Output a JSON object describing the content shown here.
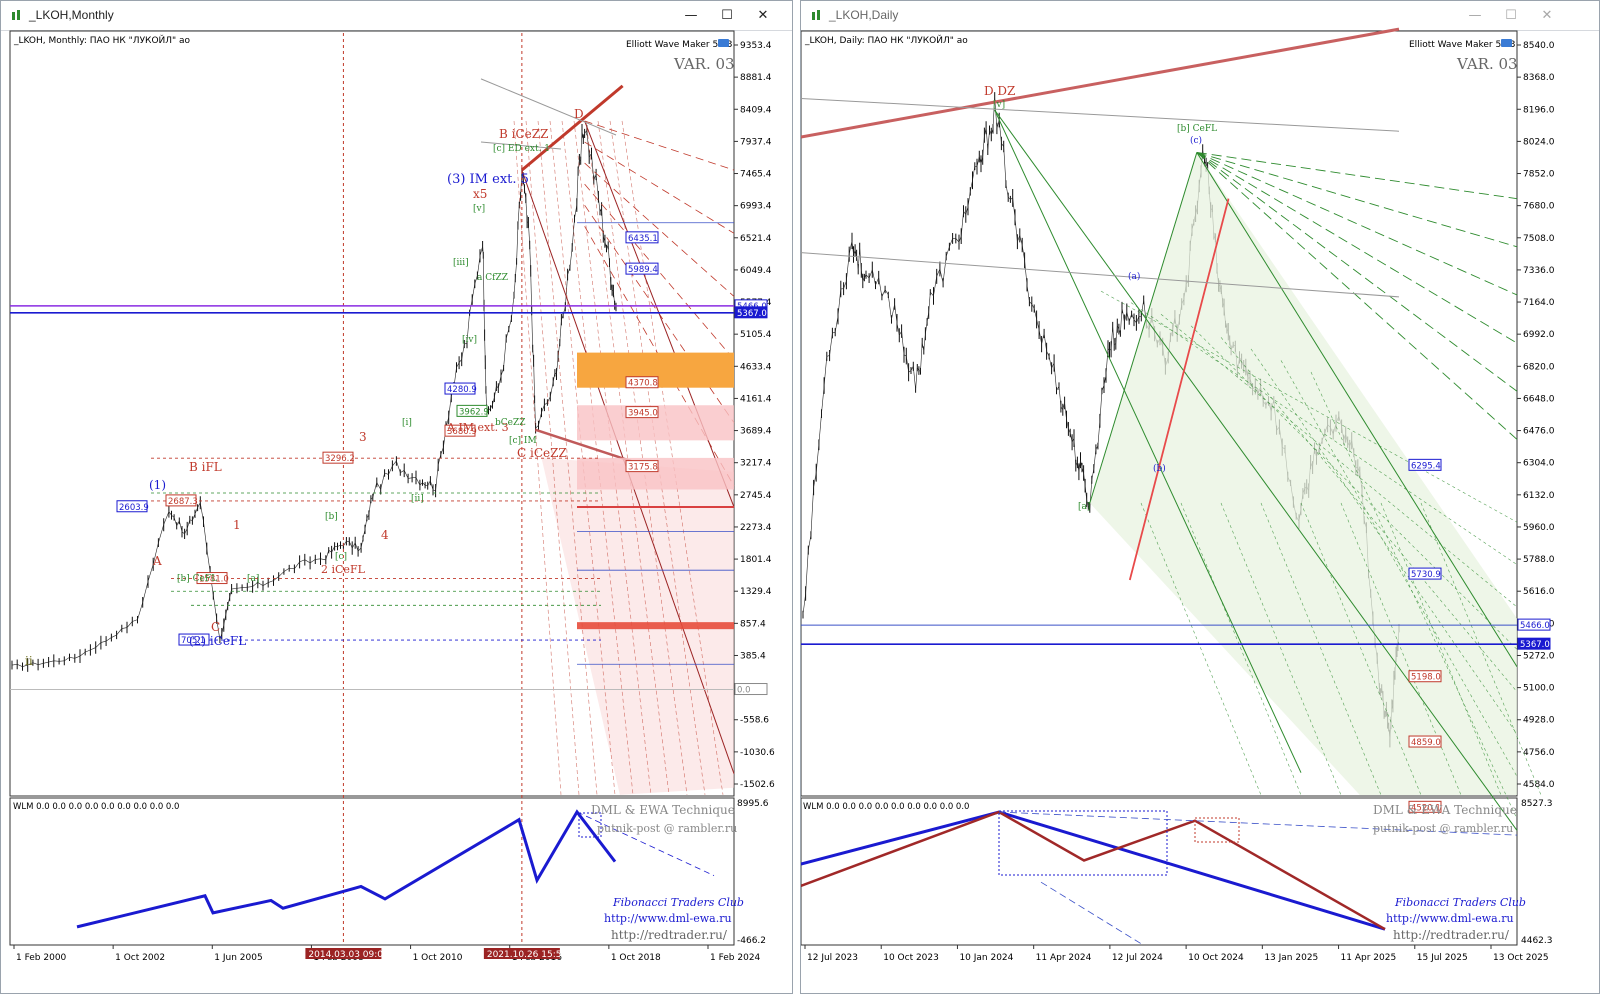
{
  "colors": {
    "blue": "#1a1ad0",
    "red": "#c0392b",
    "darkred": "#9b2323",
    "green": "#2e8b2e",
    "orange": "#f7a640",
    "pink": "#f9d0d0",
    "purple": "#8a2be2",
    "olive": "#6b6b1a"
  },
  "left": {
    "window_title": "_LKOH,Monthly",
    "chart_label": "_LKOH, Monthly:  ПАО НК \"ЛУКОЙЛ\" ао",
    "plugin": "Elliott Wave Maker 5.63",
    "variant": "VAR. 03",
    "price_ticks": [
      "9353.4",
      "8881.4",
      "8409.4",
      "7937.4",
      "7465.4",
      "6993.4",
      "6521.4",
      "6049.4",
      "5577.4",
      "5105.4",
      "4633.4",
      "4161.4",
      "3689.4",
      "3217.4",
      "2745.4",
      "2273.4",
      "1801.4",
      "1329.4",
      "857.4",
      "385.4",
      "-86.6",
      "-558.6",
      "-1030.6",
      "-1502.6"
    ],
    "price_markers": [
      {
        "text": "6435.1",
        "color": "blue"
      },
      {
        "text": "5989.4",
        "color": "blue"
      },
      {
        "text": "5466.0",
        "color": "blue"
      },
      {
        "text": "5367.0",
        "color": "blue"
      },
      {
        "text": "4370.8",
        "color": "red"
      },
      {
        "text": "3945.0",
        "color": "red"
      },
      {
        "text": "3175.8",
        "color": "red"
      },
      {
        "text": "0.0",
        "color": "gray"
      }
    ],
    "level_boxes": [
      {
        "text": "2603.9",
        "color": "blue"
      },
      {
        "text": "2687.3",
        "color": "red"
      },
      {
        "text": "1581.0",
        "color": "red"
      },
      {
        "text": "705.1",
        "color": "blue"
      },
      {
        "text": "3296.2",
        "color": "red"
      },
      {
        "text": "4280.9",
        "color": "blue"
      },
      {
        "text": "3962.9",
        "color": "green"
      },
      {
        "text": "3680.9",
        "color": "red"
      }
    ],
    "wave_labels": [
      {
        "text": "ii",
        "color": "olive"
      },
      {
        "text": "(1)",
        "color": "blue"
      },
      {
        "text": "A",
        "color": "red"
      },
      {
        "text": "B iFL",
        "color": "red"
      },
      {
        "text": "[b] CeFL",
        "color": "green"
      },
      {
        "text": "C",
        "color": "red"
      },
      {
        "text": "(2) iCeFL",
        "color": "blue"
      },
      {
        "text": "1",
        "color": "red"
      },
      {
        "text": "[a]",
        "color": "green"
      },
      {
        "text": "[b]",
        "color": "green"
      },
      {
        "text": "[c]",
        "color": "green"
      },
      {
        "text": "2 iCeFL",
        "color": "red"
      },
      {
        "text": "3",
        "color": "red"
      },
      {
        "text": "4",
        "color": "red"
      },
      {
        "text": "[i]",
        "color": "green"
      },
      {
        "text": "[ii]",
        "color": "green"
      },
      {
        "text": "[iii]",
        "color": "green"
      },
      {
        "text": "[iv]",
        "color": "green"
      },
      {
        "text": "[v]",
        "color": "green"
      },
      {
        "text": "(3) IM ext. 5",
        "color": "blue"
      },
      {
        "text": "x5",
        "color": "red"
      },
      {
        "text": "B iCeZZ",
        "color": "red"
      },
      {
        "text": "[c] ED ext. 1",
        "color": "green"
      },
      {
        "text": "D",
        "color": "red"
      },
      {
        "text": "A IM ext. 3",
        "color": "red"
      },
      {
        "text": "C iCeZZ",
        "color": "red"
      },
      {
        "text": "[c] IM",
        "color": "green"
      },
      {
        "text": "a CfZZ",
        "color": "green"
      },
      {
        "text": "bCeZZ",
        "color": "green"
      }
    ],
    "date_ticks": [
      "1 Feb 2000",
      "1 Oct 2002",
      "1 Jun 2005",
      "1 Feb 2008",
      "1 Oct 2010",
      "1 Feb 2016",
      "1 Oct 2018",
      "1 Feb 2024"
    ],
    "highlight_dates": [
      "2014.03.03 09:00",
      "2021.10.26 15:57"
    ],
    "indicator": {
      "label": "WLM 0.0 0.0 0.0 0.0 0.0 0.0 0.0 0.0 0.0",
      "ticks": [
        "8995.6",
        "-466.2"
      ],
      "brand": "DML & EWA Technique",
      "email": "putnik-post @ rambler.ru",
      "club": "Fibonacci   Traders   Club",
      "url1": "http://www.dml-ewa.ru",
      "url2": "http://redtrader.ru/"
    }
  },
  "right": {
    "window_title": "_LKOH,Daily",
    "chart_label": "_LKOH, Daily:  ПАО НК \"ЛУКОЙЛ\" ао",
    "plugin": "Elliott Wave Maker 5.63",
    "variant": "VAR. 03",
    "price_ticks": [
      "8540.0",
      "8368.0",
      "8196.0",
      "8024.0",
      "7852.0",
      "7680.0",
      "7508.0",
      "7336.0",
      "7164.0",
      "6992.0",
      "6820.0",
      "6648.0",
      "6476.0",
      "6304.0",
      "6132.0",
      "5960.0",
      "5788.0",
      "5616.0",
      "5444.0",
      "5272.0",
      "5100.0",
      "4928.0",
      "4756.0",
      "4584.0"
    ],
    "price_markers": [
      {
        "text": "6295.4",
        "color": "blue"
      },
      {
        "text": "5730.9",
        "color": "blue"
      },
      {
        "text": "5466.0",
        "color": "blue"
      },
      {
        "text": "5367.0",
        "color": "blue"
      },
      {
        "text": "5198.0",
        "color": "red"
      },
      {
        "text": "4859.0",
        "color": "red"
      },
      {
        "text": "4520.1",
        "color": "red"
      }
    ],
    "wave_labels": [
      {
        "text": "D DZ",
        "color": "red"
      },
      {
        "text": "[v]",
        "color": "green"
      },
      {
        "text": "[b] CeFL",
        "color": "green"
      },
      {
        "text": "(c)",
        "color": "blue"
      },
      {
        "text": "(a)",
        "color": "blue"
      },
      {
        "text": "(b)",
        "color": "blue"
      },
      {
        "text": "[a]",
        "color": "green"
      }
    ],
    "date_ticks": [
      "12 Jul 2023",
      "10 Oct 2023",
      "10 Jan 2024",
      "11 Apr 2024",
      "12 Jul 2024",
      "10 Oct 2024",
      "13 Jan 2025",
      "11 Apr 2025",
      "15 Jul 2025",
      "13 Oct 2025"
    ],
    "indicator": {
      "label": "WLM 0.0 0.0 0.0 0.0 0.0 0.0 0.0 0.0 0.0",
      "ticks": [
        "8527.3",
        "4462.3"
      ],
      "brand": "DML & EWA Technique",
      "email": "putnik-post @ rambler.ru",
      "club": "Fibonacci   Traders   Club",
      "url1": "http://www.dml-ewa.ru",
      "url2": "http://redtrader.ru/"
    }
  },
  "chart_data": [
    {
      "type": "line",
      "title": "_LKOH, Monthly",
      "x": [
        "2000-02",
        "2001-06",
        "2002-10",
        "2004-02",
        "2005-06",
        "2006-10",
        "2007-06",
        "2008-02",
        "2008-12",
        "2009-06",
        "2010-10",
        "2012-02",
        "2013-06",
        "2014-03",
        "2014-12",
        "2015-06",
        "2016-06",
        "2017-06",
        "2018-02",
        "2018-10",
        "2019-06",
        "2020-02",
        "2020-04",
        "2020-10",
        "2021-06",
        "2021-10",
        "2022-02",
        "2022-05",
        "2023-02",
        "2023-07",
        "2024-02",
        "2024-06",
        "2025-01",
        "2025-06",
        "2025-10"
      ],
      "series": [
        {
          "values": [
            330,
            380,
            450,
            700,
            1000,
            2600,
            2200,
            2680,
            700,
            1400,
            1500,
            1750,
            1900,
            2100,
            2000,
            2800,
            3200,
            3000,
            2900,
            4200,
            5000,
            6500,
            3900,
            4300,
            5500,
            7400,
            6300,
            3700,
            4300,
            5300,
            7000,
            8100,
            7000,
            6200,
            5450
          ]
        }
      ],
      "ylim": [
        -1502.6,
        9353.4
      ],
      "levels": [
        6435.1,
        5989.4,
        5466.0,
        5367.0,
        4370.8,
        3945.0,
        3175.8
      ]
    },
    {
      "type": "line",
      "title": "_LKOH, Daily",
      "x": [
        "2023-07-12",
        "2023-08-15",
        "2023-09-20",
        "2023-10-10",
        "2023-11-20",
        "2023-12-20",
        "2024-01-10",
        "2024-02-20",
        "2024-03-20",
        "2024-04-11",
        "2024-05-10",
        "2024-06-10",
        "2024-07-12",
        "2024-08-05",
        "2024-08-25",
        "2024-09-20",
        "2024-10-10",
        "2024-11-10",
        "2024-12-15",
        "2025-01-13",
        "2025-02-05",
        "2025-02-25",
        "2025-03-15",
        "2025-04-11",
        "2025-05-15",
        "2025-06-20",
        "2025-07-15",
        "2025-08-20",
        "2025-09-15",
        "2025-10-13",
        "2025-10-28",
        "2025-11-10"
      ],
      "series": [
        {
          "values": [
            5540,
            6850,
            7450,
            7280,
            7100,
            6700,
            7150,
            7500,
            7850,
            8140,
            7550,
            7050,
            6700,
            6350,
            6100,
            6900,
            7050,
            7100,
            6850,
            7300,
            7950,
            7250,
            6900,
            6750,
            6600,
            6000,
            6400,
            6500,
            6300,
            5150,
            4900,
            5450
          ]
        }
      ],
      "ylim": [
        4584.0,
        8540.0
      ],
      "levels": [
        6295.4,
        5730.9,
        5466.0,
        5367.0,
        5198.0,
        4859.0,
        4520.1
      ]
    }
  ]
}
